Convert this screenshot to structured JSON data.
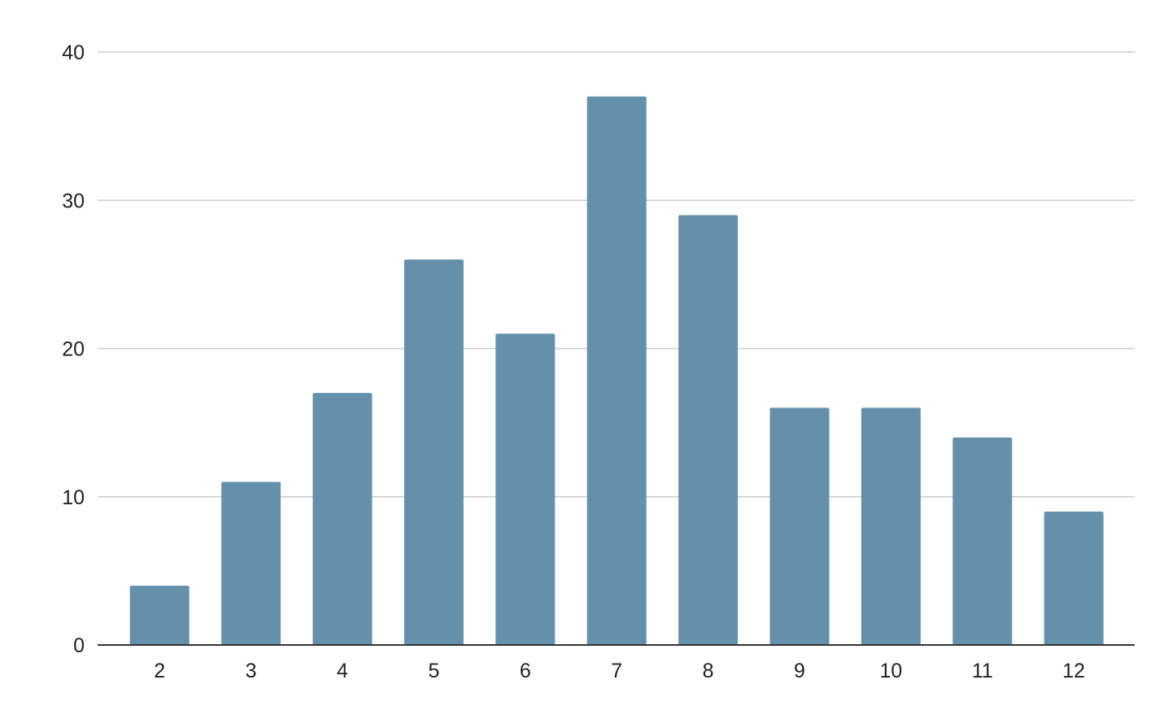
{
  "chart_data": {
    "type": "bar",
    "title": "",
    "xlabel": "",
    "ylabel": "",
    "categories": [
      "2",
      "3",
      "4",
      "5",
      "6",
      "7",
      "8",
      "9",
      "10",
      "11",
      "12"
    ],
    "values": [
      4,
      11,
      17,
      26,
      21,
      37,
      29,
      16,
      16,
      14,
      9
    ],
    "ylim": [
      0,
      40
    ],
    "yticks": [
      "0",
      "10",
      "20",
      "30",
      "40"
    ],
    "grid": true,
    "legend": "none",
    "bar_color": "#6590ab",
    "grid_color": "#cccccc",
    "axis_color": "#333333"
  }
}
